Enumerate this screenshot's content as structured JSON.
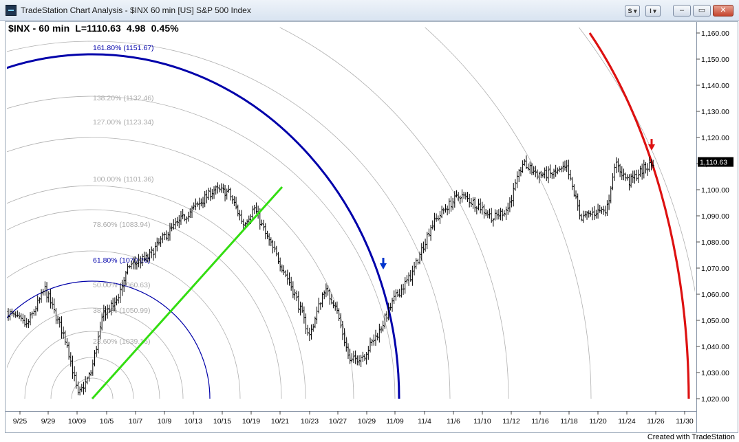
{
  "window": {
    "title": "TradeStation Chart Analysis - $INX 60 min [US] S&P 500 Index",
    "btn_s": "S ▾",
    "btn_i": "I ▾",
    "minimize": "–",
    "restore": "▭",
    "close": "✕"
  },
  "status": {
    "symbol": "$INX - 60 min",
    "last": "L=1110.63",
    "change": "4.98",
    "pct": "0.45%"
  },
  "footer": "Created with TradeStation",
  "colors": {
    "price_bars": "#000000",
    "fib_arc_highlight": "#0000aa",
    "fib_arc_faint": "#b0b0b0",
    "trend_line": "#33dd11",
    "red_arc": "#dd1111",
    "blue_arrow": "#0033cc",
    "red_arrow": "#dd1111"
  },
  "chart_data": {
    "type": "ohlc",
    "interval": "60 min",
    "y_axis": {
      "range": [
        1017,
        1165
      ],
      "ticks": [
        "1,160.00",
        "1,150.00",
        "1,140.00",
        "1,130.00",
        "1,120.00",
        "1,110.00",
        "1,100.00",
        "1,090.00",
        "1,080.00",
        "1,070.00",
        "1,060.00",
        "1,050.00",
        "1,040.00",
        "1,030.00",
        "1,020.00"
      ],
      "last_price_label": "1,110.63"
    },
    "x_axis": {
      "ticks": [
        "9/25",
        "9/29",
        "10/09",
        "10/5",
        "10/7",
        "10/9",
        "10/13",
        "10/15",
        "10/19",
        "10/21",
        "10/23",
        "10/27",
        "10/29",
        "11/09",
        "11/4",
        "11/6",
        "11/10",
        "11/12",
        "11/16",
        "11/18",
        "11/20",
        "11/24",
        "11/26",
        "11/30"
      ]
    },
    "fib_arc_labels": [
      {
        "text": "161.80% (1151.67)",
        "level": 1151.67,
        "highlight": true
      },
      {
        "text": "138.20% (1132.46)",
        "level": 1132.46,
        "highlight": false
      },
      {
        "text": "127.00% (1123.34)",
        "level": 1123.34,
        "highlight": false
      },
      {
        "text": "100.00% (1101.36)",
        "level": 1101.36,
        "highlight": false
      },
      {
        "text": "78.60% (1083.94)",
        "level": 1083.94,
        "highlight": false
      },
      {
        "text": "61.80% (1070.26)",
        "level": 1070.26,
        "highlight": true
      },
      {
        "text": "50.00% (1060.63)",
        "level": 1060.63,
        "highlight": false
      },
      {
        "text": "38.20% (1050.99)",
        "level": 1050.99,
        "highlight": false
      },
      {
        "text": "23.60% (1039.16)",
        "level": 1039.16,
        "highlight": false
      }
    ],
    "trend_line": {
      "from": {
        "x": "10/09",
        "y": 1020.2
      },
      "to": {
        "x": "10/21",
        "y": 1101.4
      }
    },
    "key_points": [
      {
        "bar": 0,
        "close": 1053
      },
      {
        "bar": 10,
        "close": 1048
      },
      {
        "bar": 20,
        "close": 1062
      },
      {
        "bar": 32,
        "close": 1041
      },
      {
        "bar": 38,
        "close": 1021
      },
      {
        "bar": 45,
        "close": 1030
      },
      {
        "bar": 52,
        "close": 1053
      },
      {
        "bar": 58,
        "close": 1056
      },
      {
        "bar": 66,
        "close": 1071
      },
      {
        "bar": 76,
        "close": 1074
      },
      {
        "bar": 86,
        "close": 1083
      },
      {
        "bar": 98,
        "close": 1091
      },
      {
        "bar": 112,
        "close": 1100
      },
      {
        "bar": 120,
        "close": 1099
      },
      {
        "bar": 128,
        "close": 1087
      },
      {
        "bar": 134,
        "close": 1093
      },
      {
        "bar": 140,
        "close": 1083
      },
      {
        "bar": 148,
        "close": 1072
      },
      {
        "bar": 156,
        "close": 1060
      },
      {
        "bar": 164,
        "close": 1044
      },
      {
        "bar": 172,
        "close": 1062
      },
      {
        "bar": 178,
        "close": 1056
      },
      {
        "bar": 186,
        "close": 1034
      },
      {
        "bar": 194,
        "close": 1037
      },
      {
        "bar": 202,
        "close": 1046
      },
      {
        "bar": 210,
        "close": 1058
      },
      {
        "bar": 220,
        "close": 1068
      },
      {
        "bar": 230,
        "close": 1086
      },
      {
        "bar": 238,
        "close": 1093
      },
      {
        "bar": 246,
        "close": 1098
      },
      {
        "bar": 256,
        "close": 1094
      },
      {
        "bar": 264,
        "close": 1089
      },
      {
        "bar": 272,
        "close": 1093
      },
      {
        "bar": 280,
        "close": 1110
      },
      {
        "bar": 288,
        "close": 1106
      },
      {
        "bar": 296,
        "close": 1106
      },
      {
        "bar": 304,
        "close": 1108
      },
      {
        "bar": 312,
        "close": 1089
      },
      {
        "bar": 318,
        "close": 1091
      },
      {
        "bar": 326,
        "close": 1093
      },
      {
        "bar": 330,
        "close": 1110
      },
      {
        "bar": 338,
        "close": 1103
      },
      {
        "bar": 346,
        "close": 1108
      },
      {
        "bar": 352,
        "close": 1110.63
      }
    ]
  }
}
